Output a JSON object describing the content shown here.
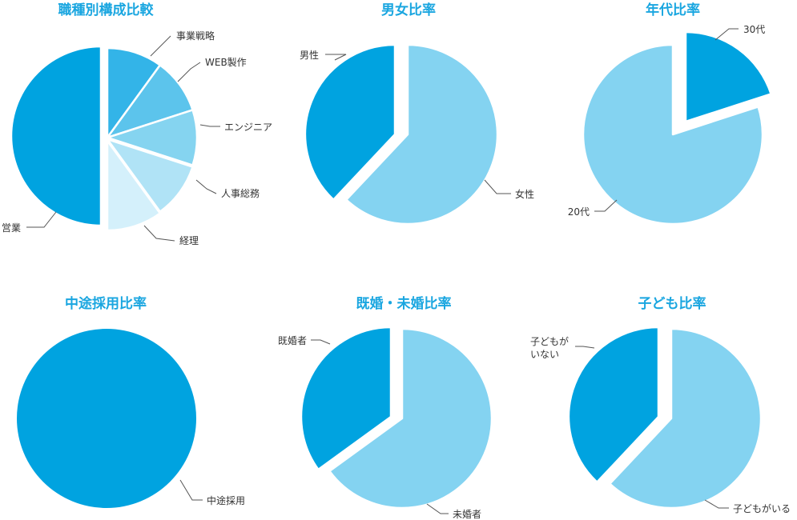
{
  "colors": {
    "title": "#1aa6e0",
    "primary": "#00a3e0",
    "light": "#84d3f1",
    "shade1": "#33b4e8",
    "shade2": "#5cc4ec",
    "shade3": "#85d4f0",
    "shade4": "#b0e3f6",
    "shade5": "#d4f0fb"
  },
  "chart_data": [
    {
      "type": "pie",
      "title": "職種別構成比較",
      "slices": [
        {
          "label": "営業",
          "value": 50,
          "color": "#00a3e0"
        },
        {
          "label": "事業戦略",
          "value": 10,
          "color": "#33b4e8"
        },
        {
          "label": "WEB製作",
          "value": 10,
          "color": "#5cc4ec"
        },
        {
          "label": "エンジニア",
          "value": 10,
          "color": "#85d4f0"
        },
        {
          "label": "人事総務",
          "value": 10,
          "color": "#b0e3f6"
        },
        {
          "label": "経理",
          "value": 10,
          "color": "#d4f0fb"
        }
      ]
    },
    {
      "type": "pie",
      "title": "男女比率",
      "slices": [
        {
          "label": "女性",
          "value": 62,
          "color": "#84d3f1"
        },
        {
          "label": "男性",
          "value": 38,
          "color": "#00a3e0"
        }
      ]
    },
    {
      "type": "pie",
      "title": "年代比率",
      "slices": [
        {
          "label": "30代",
          "value": 20,
          "color": "#00a3e0"
        },
        {
          "label": "20代",
          "value": 80,
          "color": "#84d3f1"
        }
      ]
    },
    {
      "type": "pie",
      "title": "中途採用比率",
      "slices": [
        {
          "label": "中途採用",
          "value": 100,
          "color": "#00a3e0"
        }
      ]
    },
    {
      "type": "pie",
      "title": "既婚・未婚比率",
      "slices": [
        {
          "label": "未婚者",
          "value": 65,
          "color": "#84d3f1"
        },
        {
          "label": "既婚者",
          "value": 35,
          "color": "#00a3e0"
        }
      ]
    },
    {
      "type": "pie",
      "title": "子ども比率",
      "slices": [
        {
          "label": "子どもがいる",
          "value": 62,
          "color": "#84d3f1"
        },
        {
          "label": "子どもがいない",
          "value": 38,
          "color": "#00a3e0"
        }
      ]
    }
  ]
}
